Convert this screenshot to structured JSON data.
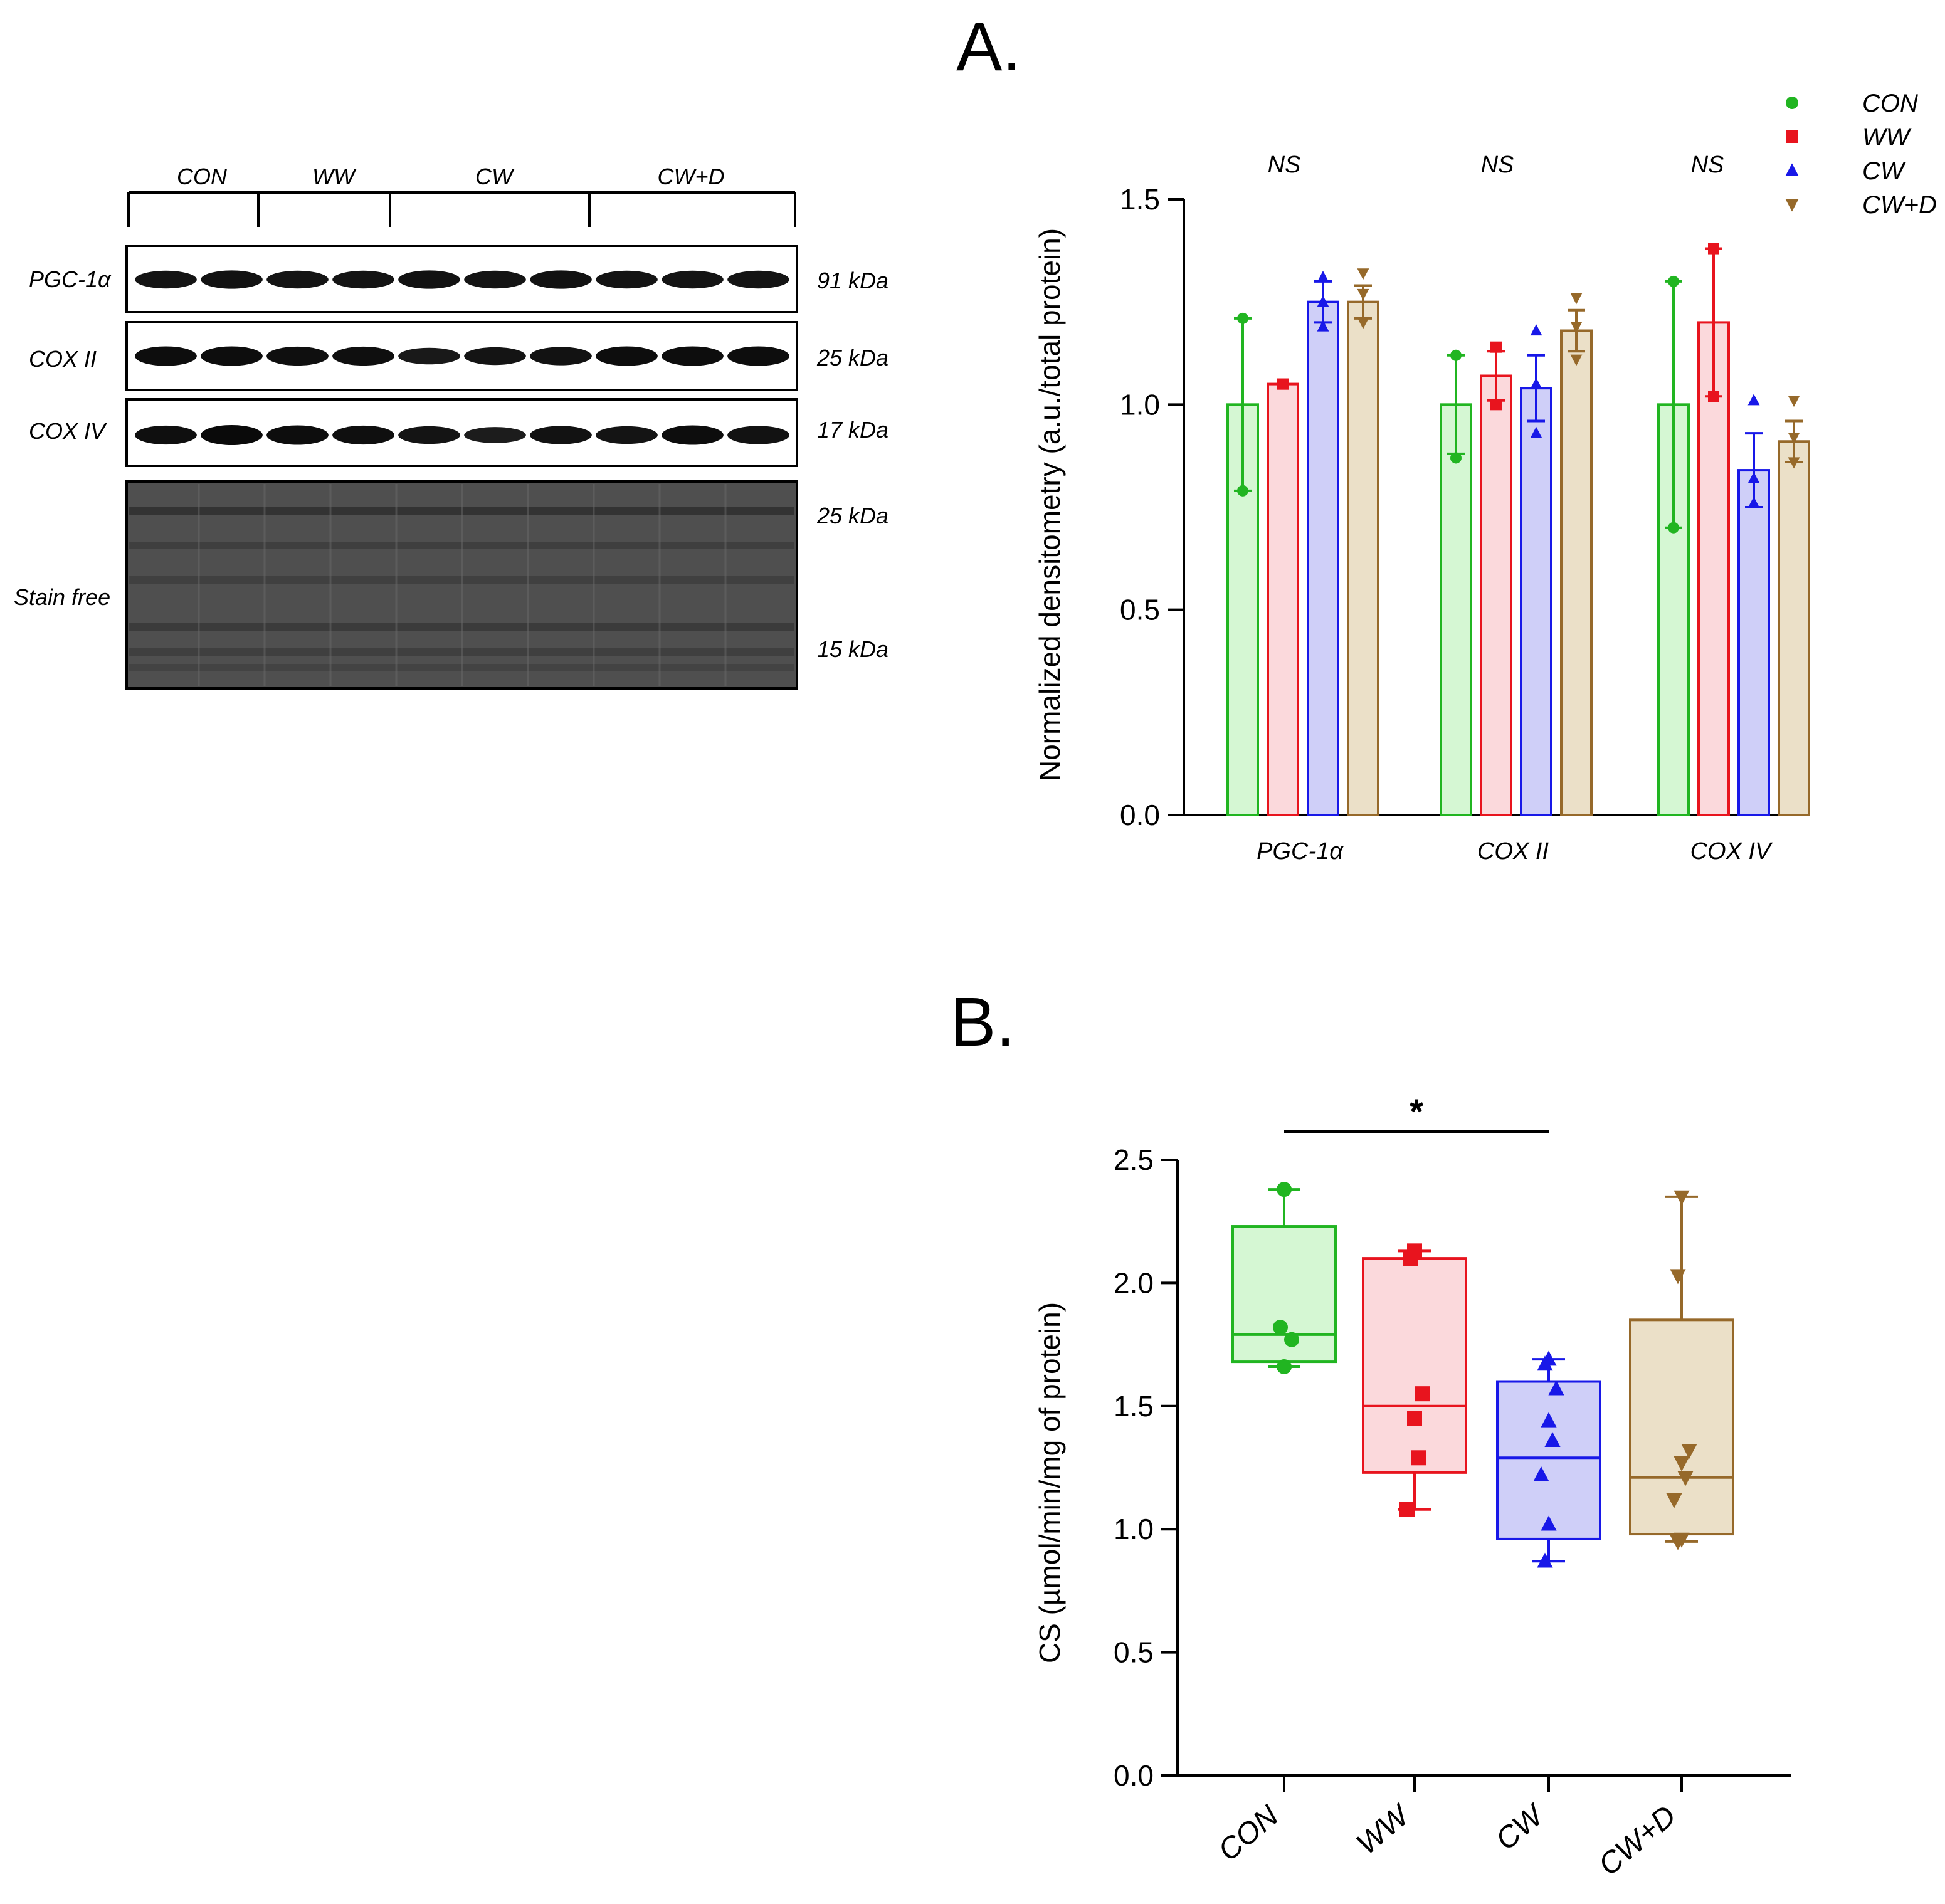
{
  "colors": {
    "CON": "#21b521",
    "CON_fill": "#d5f7d3",
    "WW": "#e8141e",
    "WW_fill": "#fbd9dc",
    "CW": "#1818e8",
    "CW_fill": "#cfcff8",
    "CWD": "#96692a",
    "CWD_fill": "#ebe0c8"
  },
  "blot": {
    "groups": [
      "CON",
      "WW",
      "CW",
      "CW+D"
    ],
    "rows": [
      {
        "label": "PGC-1α",
        "kda": "91 kDa"
      },
      {
        "label": "COX II",
        "kda": "25 kDa"
      },
      {
        "label": "COX IV",
        "kda": "17 kDa"
      },
      {
        "label": "Stain free",
        "kda_top": "25 kDa",
        "kda_bottom": "15 kDa"
      }
    ],
    "lanes": 10,
    "band_intensity": {
      "PGC-1α": [
        0.8,
        0.85,
        0.8,
        0.8,
        0.85,
        0.8,
        0.85,
        0.8,
        0.8,
        0.8
      ],
      "COX II": [
        0.95,
        0.95,
        0.9,
        0.9,
        0.7,
        0.8,
        0.85,
        0.95,
        0.95,
        0.95
      ],
      "COX IV": [
        0.9,
        1.0,
        0.95,
        0.9,
        0.8,
        0.65,
        0.85,
        0.8,
        0.95,
        0.85
      ]
    }
  },
  "chart_data": [
    {
      "type": "bar",
      "panel_label": "A.",
      "ylabel": "Normalized densitometry (a.u./total protein)",
      "ylim": [
        0,
        1.5
      ],
      "yticks": [
        "0.0",
        "0.5",
        "1.0",
        "1.5"
      ],
      "categories": [
        "PGC-1α",
        "COX II",
        "COX IV"
      ],
      "annotations": [
        "NS",
        "NS",
        "NS"
      ],
      "legend": {
        "position": "top-right",
        "entries": [
          "CON",
          "WW",
          "CW",
          "CW+D"
        ]
      },
      "series": [
        {
          "name": "CON",
          "values": [
            1.0,
            1.0,
            1.0
          ],
          "errors": [
            0.21,
            0.12,
            0.3
          ],
          "points": [
            [
              1.21,
              0.79
            ],
            [
              1.12,
              0.87
            ],
            [
              1.3,
              0.7
            ]
          ]
        },
        {
          "name": "WW",
          "values": [
            1.05,
            1.07,
            1.2
          ],
          "errors": [
            0.0,
            0.06,
            0.18
          ],
          "points": [
            [
              1.05,
              1.05
            ],
            [
              1.14,
              1.0
            ],
            [
              1.38,
              1.02
            ]
          ]
        },
        {
          "name": "CW",
          "values": [
            1.25,
            1.04,
            0.84
          ],
          "errors": [
            0.05,
            0.08,
            0.09
          ],
          "points": [
            [
              1.31,
              1.25,
              1.19
            ],
            [
              1.18,
              1.05,
              0.93
            ],
            [
              1.01,
              0.82,
              0.76
            ]
          ]
        },
        {
          "name": "CW+D",
          "values": [
            1.25,
            1.18,
            0.91
          ],
          "errors": [
            0.04,
            0.05,
            0.05
          ],
          "points": [
            [
              1.32,
              1.27,
              1.2
            ],
            [
              1.26,
              1.19,
              1.11
            ],
            [
              1.01,
              0.92,
              0.86
            ]
          ]
        }
      ]
    },
    {
      "type": "box",
      "panel_label": "B.",
      "ylabel": "CS  (µmol/min/mg of protein)",
      "ylim": [
        0,
        2.5
      ],
      "yticks": [
        "0.0",
        "0.5",
        "1.0",
        "1.5",
        "2.0",
        "2.5"
      ],
      "categories": [
        "CON",
        "WW",
        "CW",
        "CW+D"
      ],
      "significance": {
        "from": "CON",
        "to": "CW",
        "label": "*"
      },
      "boxes": [
        {
          "name": "CON",
          "min": 1.66,
          "q1": 1.68,
          "median": 1.79,
          "q3": 2.23,
          "max": 2.38,
          "points": [
            2.38,
            1.82,
            1.77,
            1.66
          ]
        },
        {
          "name": "WW",
          "min": 1.08,
          "q1": 1.23,
          "median": 1.5,
          "q3": 2.1,
          "max": 2.13,
          "points": [
            2.13,
            2.1,
            1.55,
            1.45,
            1.29,
            1.08
          ]
        },
        {
          "name": "CW",
          "min": 0.87,
          "q1": 0.96,
          "median": 1.29,
          "q3": 1.6,
          "max": 1.69,
          "points": [
            1.69,
            1.67,
            1.57,
            1.44,
            1.36,
            1.22,
            1.02,
            0.87
          ]
        },
        {
          "name": "CW+D",
          "min": 0.95,
          "q1": 0.98,
          "median": 1.21,
          "q3": 1.85,
          "max": 2.35,
          "points": [
            2.35,
            2.03,
            1.32,
            1.27,
            1.21,
            1.12,
            0.96,
            0.95
          ]
        }
      ]
    }
  ]
}
